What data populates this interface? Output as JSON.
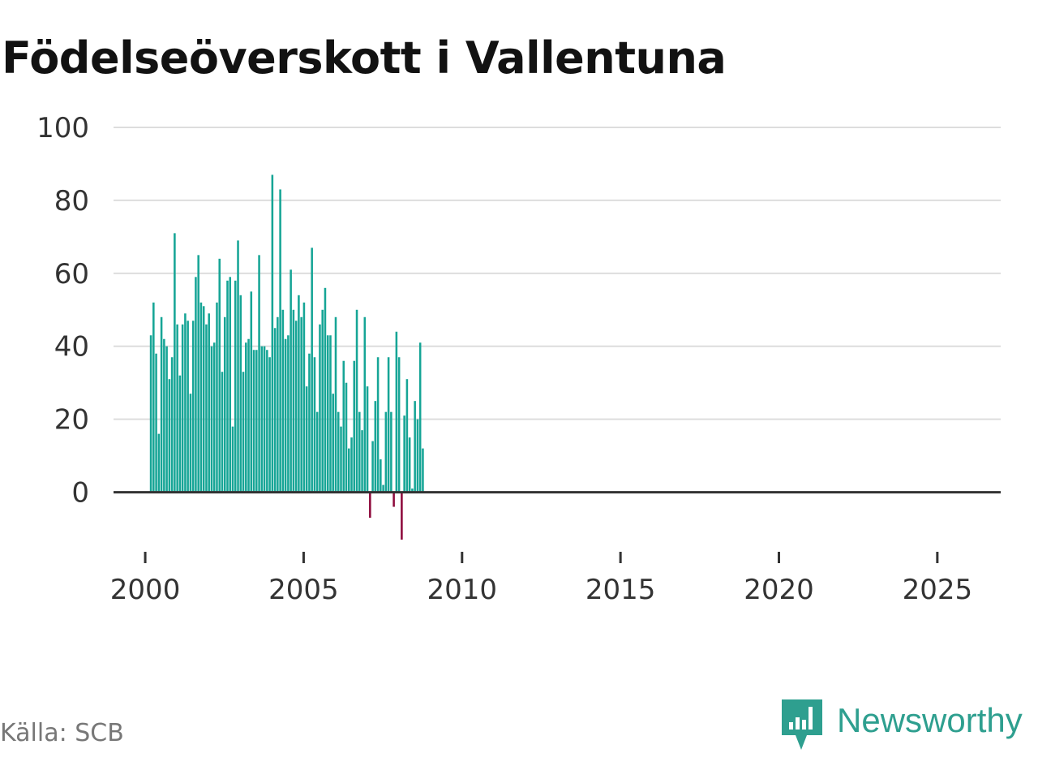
{
  "chart_data": {
    "type": "bar",
    "title": "Födelseöverskott i Vallentuna",
    "xlabel": "",
    "ylabel": "",
    "ylim": [
      -15,
      100
    ],
    "xlim": [
      1999.0,
      2027.0
    ],
    "y_ticks": [
      0,
      20,
      40,
      60,
      80,
      100
    ],
    "y_tick_labels": [
      "0",
      "20",
      "40",
      "60",
      "80",
      "100"
    ],
    "x_ticks": [
      2000,
      2005,
      2010,
      2015,
      2020,
      2025
    ],
    "x_tick_labels": [
      "2000",
      "2005",
      "2010",
      "2015",
      "2020",
      "2025"
    ],
    "grid": true,
    "positive_color": "#16a596",
    "negative_color": "#8e0a3c",
    "series": [
      {
        "name": "Födelseöverskott",
        "frequency": "monthly",
        "start": 2000.0,
        "step": 0.25,
        "values": [
          43,
          52,
          38,
          16,
          48,
          42,
          40,
          31,
          37,
          71,
          46,
          32,
          46,
          49,
          47,
          27,
          47,
          59,
          65,
          52,
          51,
          46,
          49,
          40,
          41,
          52,
          64,
          33,
          48,
          58,
          59,
          18,
          58,
          69,
          54,
          33,
          41,
          42,
          55,
          39,
          39,
          65,
          40,
          40,
          39,
          37,
          87,
          45,
          48,
          83,
          50,
          42,
          43,
          61,
          50,
          47,
          54,
          48,
          52,
          29,
          38,
          67,
          37,
          22,
          46,
          50,
          56,
          43,
          43,
          27,
          48,
          22,
          18,
          36,
          30,
          12,
          15,
          36,
          50,
          22,
          17,
          48,
          29,
          -7,
          14,
          25,
          37,
          9,
          2,
          22,
          37,
          22,
          -4,
          44,
          37,
          -13,
          21,
          31,
          15,
          1,
          25,
          20,
          41,
          12
        ]
      }
    ]
  },
  "source": "Källa: SCB",
  "brand": {
    "name": "Newsworthy",
    "logo_icon": "newsworthy-logo-icon",
    "color": "#2e9f8f"
  }
}
